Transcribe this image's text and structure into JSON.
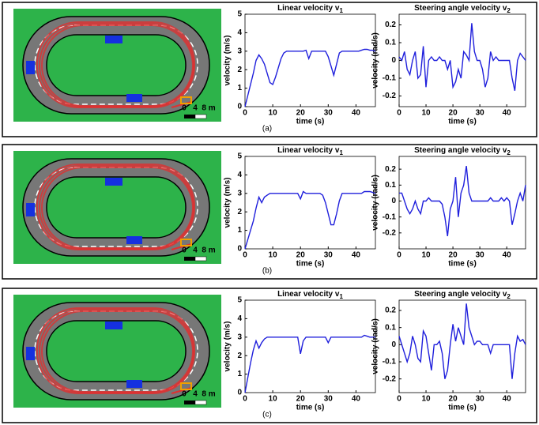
{
  "panels": [
    {
      "label": "(a)",
      "scale_labels": [
        "0",
        "4",
        "8 m"
      ]
    },
    {
      "label": "(b)",
      "scale_labels": [
        "0",
        "4",
        "8 m"
      ]
    },
    {
      "label": "(c)",
      "scale_labels": [
        "0",
        "4",
        "8 m"
      ]
    }
  ],
  "chart_data": [
    {
      "type": "line",
      "title": "Linear velocity v",
      "title_sub": "1",
      "xlabel": "time (s)",
      "ylabel": "velocity (m/s)",
      "xlim": [
        0,
        47
      ],
      "ylim": [
        0,
        5
      ],
      "xticks": [
        0,
        10,
        20,
        30,
        40
      ],
      "yticks": [
        0,
        1,
        2,
        3,
        4,
        5
      ],
      "x": [
        0,
        1,
        2,
        3,
        4,
        5,
        6,
        7,
        8,
        9,
        10,
        11,
        12,
        13,
        14,
        15,
        16,
        17,
        18,
        19,
        20,
        21,
        22,
        23,
        24,
        25,
        26,
        27,
        28,
        29,
        30,
        31,
        32,
        33,
        34,
        35,
        36,
        37,
        38,
        39,
        40,
        41,
        42,
        43,
        44,
        45,
        46,
        47
      ],
      "series": [
        {
          "color": "#1f1fdc",
          "values": [
            0,
            0.6,
            1.2,
            1.8,
            2.5,
            2.8,
            2.6,
            2.3,
            1.8,
            1.3,
            1.2,
            1.6,
            2.1,
            2.6,
            2.9,
            3,
            3,
            3,
            3,
            3,
            3,
            3,
            3.05,
            2.6,
            3,
            3,
            3,
            3,
            3,
            3,
            2.7,
            2.2,
            1.7,
            2.3,
            2.9,
            3,
            3,
            3,
            3,
            3,
            3,
            3,
            3.05,
            3.1,
            3.1,
            3.05,
            3.05,
            3
          ]
        }
      ]
    },
    {
      "type": "line",
      "title": "Steering angle velocity v",
      "title_sub": "2",
      "xlabel": "time (s)",
      "ylabel": "velocity (rad/s)",
      "xlim": [
        0,
        47
      ],
      "ylim": [
        -0.26,
        0.26
      ],
      "xticks": [
        0,
        10,
        20,
        30,
        40
      ],
      "yticks": [
        -0.2,
        -0.1,
        0,
        0.1,
        0.2
      ],
      "x": [
        0,
        1,
        2,
        3,
        4,
        5,
        6,
        7,
        8,
        9,
        10,
        11,
        12,
        13,
        14,
        15,
        16,
        17,
        18,
        19,
        20,
        21,
        22,
        23,
        24,
        25,
        26,
        27,
        28,
        29,
        30,
        31,
        32,
        33,
        34,
        35,
        36,
        37,
        38,
        39,
        40,
        41,
        42,
        43,
        44,
        45,
        46,
        47
      ],
      "series": [
        {
          "color": "#1f1fdc",
          "values": [
            0.02,
            0,
            0.05,
            -0.05,
            -0.08,
            0,
            0.05,
            -0.1,
            -0.08,
            0.08,
            -0.15,
            0,
            0.02,
            0,
            0,
            0.02,
            0,
            0,
            -0.05,
            0,
            -0.15,
            -0.12,
            -0.05,
            -0.1,
            0.05,
            0.03,
            0,
            0.21,
            0.05,
            0,
            0,
            -0.05,
            -0.15,
            -0.1,
            0.05,
            0,
            0.02,
            0,
            0,
            0,
            0,
            0,
            -0.1,
            -0.17,
            0,
            0.04,
            0.02,
            0
          ]
        }
      ]
    },
    {
      "type": "line",
      "title": "Linear velocity v",
      "title_sub": "1",
      "xlabel": "time (s)",
      "ylabel": "velocity (m/s)",
      "xlim": [
        0,
        47
      ],
      "ylim": [
        0,
        5
      ],
      "xticks": [
        0,
        10,
        20,
        30,
        40
      ],
      "yticks": [
        0,
        1,
        2,
        3,
        4,
        5
      ],
      "x": [
        0,
        1,
        2,
        3,
        4,
        5,
        6,
        7,
        8,
        9,
        10,
        11,
        12,
        13,
        14,
        15,
        16,
        17,
        18,
        19,
        20,
        21,
        22,
        23,
        24,
        25,
        26,
        27,
        28,
        29,
        30,
        31,
        32,
        33,
        34,
        35,
        36,
        37,
        38,
        39,
        40,
        41,
        42,
        43,
        44,
        45,
        46,
        47
      ],
      "series": [
        {
          "color": "#1f1fdc",
          "values": [
            0,
            0.5,
            1,
            1.5,
            2.2,
            2.8,
            2.5,
            2.8,
            2.9,
            3,
            3,
            3,
            3,
            3,
            3,
            3,
            3,
            3,
            3,
            3,
            2.7,
            3.1,
            3,
            3,
            3,
            3,
            3,
            3,
            2.9,
            2.5,
            1.9,
            1.3,
            1.3,
            1.9,
            2.6,
            3,
            3,
            3,
            3,
            3,
            3,
            3,
            3,
            3.1,
            3.1,
            3.1,
            3.05,
            3
          ]
        }
      ]
    },
    {
      "type": "line",
      "title": "Steering angle velocity v",
      "title_sub": "2",
      "xlabel": "time (s)",
      "ylabel": "velocity (rad/s)",
      "xlim": [
        0,
        47
      ],
      "ylim": [
        -0.3,
        0.28
      ],
      "xticks": [
        0,
        10,
        20,
        30,
        40
      ],
      "yticks": [
        -0.2,
        -0.1,
        0,
        0.1,
        0.2
      ],
      "x": [
        0,
        1,
        2,
        3,
        4,
        5,
        6,
        7,
        8,
        9,
        10,
        11,
        12,
        13,
        14,
        15,
        16,
        17,
        18,
        19,
        20,
        21,
        22,
        23,
        24,
        25,
        26,
        27,
        28,
        29,
        30,
        31,
        32,
        33,
        34,
        35,
        36,
        37,
        38,
        39,
        40,
        41,
        42,
        43,
        44,
        45,
        46,
        47
      ],
      "series": [
        {
          "color": "#1f1fdc",
          "values": [
            0.05,
            0.05,
            0,
            -0.05,
            -0.08,
            -0.05,
            0,
            -0.05,
            -0.08,
            0,
            0,
            0.02,
            0,
            0,
            0,
            0,
            -0.02,
            -0.1,
            -0.22,
            -0.05,
            0,
            0.15,
            -0.1,
            0.05,
            0.1,
            0.22,
            0.05,
            0,
            0,
            0,
            0,
            0,
            0,
            0,
            0.02,
            0,
            0,
            0,
            0.02,
            0,
            0.02,
            0,
            -0.15,
            -0.08,
            0,
            0.05,
            0,
            0.1
          ]
        }
      ]
    },
    {
      "type": "line",
      "title": "Linear velocity v",
      "title_sub": "1",
      "xlabel": "time (s)",
      "ylabel": "velocity (m/s)",
      "xlim": [
        0,
        47
      ],
      "ylim": [
        0,
        5
      ],
      "xticks": [
        0,
        10,
        20,
        30,
        40
      ],
      "yticks": [
        0,
        1,
        2,
        3,
        4,
        5
      ],
      "x": [
        0,
        1,
        2,
        3,
        4,
        5,
        6,
        7,
        8,
        9,
        10,
        11,
        12,
        13,
        14,
        15,
        16,
        17,
        18,
        19,
        20,
        21,
        22,
        23,
        24,
        25,
        26,
        27,
        28,
        29,
        30,
        31,
        32,
        33,
        34,
        35,
        36,
        37,
        38,
        39,
        40,
        41,
        42,
        43,
        44,
        45,
        46,
        47
      ],
      "series": [
        {
          "color": "#1f1fdc",
          "values": [
            0,
            0.8,
            1.6,
            2.3,
            2.8,
            2.4,
            2.7,
            2.9,
            3,
            3,
            3,
            3,
            3,
            3,
            3,
            3,
            3,
            3,
            3,
            3,
            2.1,
            2.8,
            3,
            3,
            3,
            3,
            3,
            3,
            3,
            3,
            2.7,
            3,
            3,
            3,
            3,
            3,
            3,
            3,
            3,
            3,
            3,
            3,
            3,
            3.1,
            3.05,
            3,
            3,
            3
          ]
        }
      ]
    },
    {
      "type": "line",
      "title": "Steering angle velocity v",
      "title_sub": "2",
      "xlabel": "time (s)",
      "ylabel": "velocity (rad/s)",
      "xlim": [
        0,
        47
      ],
      "ylim": [
        -0.28,
        0.26
      ],
      "xticks": [
        0,
        10,
        20,
        30,
        40
      ],
      "yticks": [
        -0.2,
        -0.1,
        0,
        0.1,
        0.2
      ],
      "x": [
        0,
        1,
        2,
        3,
        4,
        5,
        6,
        7,
        8,
        9,
        10,
        11,
        12,
        13,
        14,
        15,
        16,
        17,
        18,
        19,
        20,
        21,
        22,
        23,
        24,
        25,
        26,
        27,
        28,
        29,
        30,
        31,
        32,
        33,
        34,
        35,
        36,
        37,
        38,
        39,
        40,
        41,
        42,
        43,
        44,
        45,
        46,
        47
      ],
      "series": [
        {
          "color": "#1f1fdc",
          "values": [
            0.05,
            0,
            -0.05,
            -0.1,
            -0.05,
            0.05,
            0,
            -0.08,
            -0.1,
            0.08,
            0.05,
            -0.05,
            -0.15,
            0,
            0,
            0.02,
            -0.05,
            -0.2,
            -0.15,
            0,
            0.12,
            0.02,
            0.1,
            0.05,
            0,
            0.24,
            0.1,
            0.05,
            0,
            0.02,
            0.02,
            0,
            0,
            0,
            -0.05,
            0,
            0,
            0,
            0,
            0,
            0,
            0,
            -0.2,
            -0.05,
            0.05,
            0.02,
            0.03,
            0
          ]
        }
      ]
    }
  ]
}
